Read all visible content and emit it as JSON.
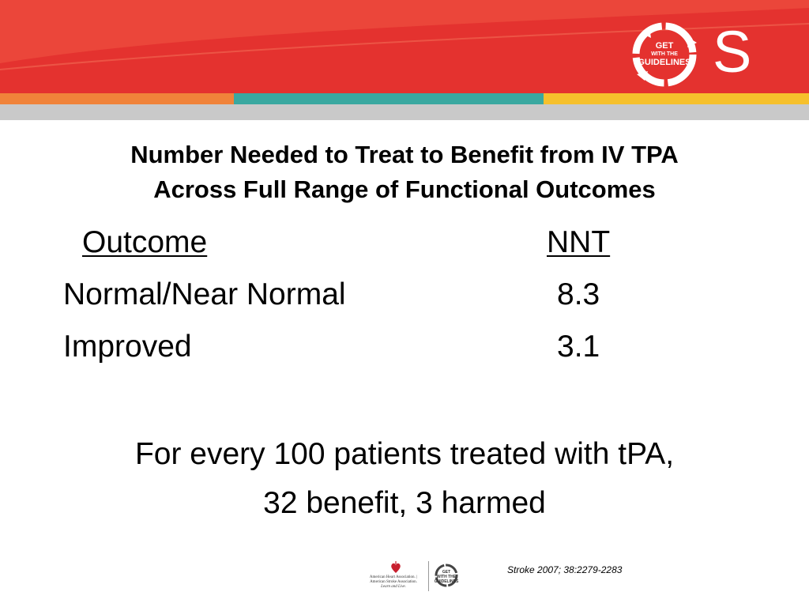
{
  "header": {
    "logo_line1": "GET",
    "logo_line2": "WITH THE",
    "logo_line3": "GUIDELINES",
    "banner_letter": "S",
    "colors": {
      "red": "#e4322f",
      "orange": "#f0833a",
      "teal": "#3aa8a0",
      "yellow": "#f6c02c",
      "gray": "#c8c8c8"
    }
  },
  "title": {
    "line1": "Number Needed to Treat to Benefit from IV TPA",
    "line2": "Across Full Range of Functional Outcomes"
  },
  "table": {
    "header_outcome": "Outcome",
    "header_nnt": "NNT",
    "rows": [
      {
        "outcome": "Normal/Near Normal",
        "nnt": "8.3"
      },
      {
        "outcome": "Improved",
        "nnt": "3.1"
      }
    ]
  },
  "summary": {
    "line1": "For every 100 patients treated with tPA,",
    "line2": "32 benefit, 3 harmed"
  },
  "footer": {
    "citation": "Stroke 2007; 38:2279-2283",
    "aha_text1": "American Heart Association.",
    "aha_text2": "American Stroke Association.",
    "aha_text3": "Learn and Live.",
    "small_logo_line1": "GET",
    "small_logo_line2": "WITH THE",
    "small_logo_line3": "GUIDELINES"
  }
}
